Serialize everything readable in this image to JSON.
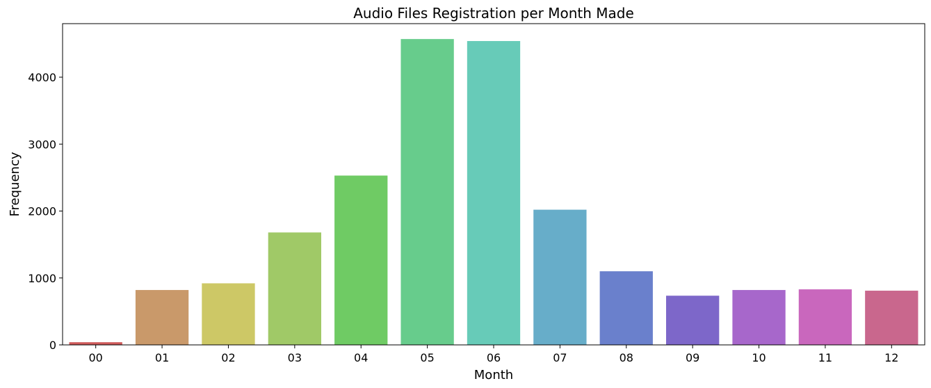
{
  "chart_data": {
    "type": "bar",
    "title": "Audio Files Registration per Month Made",
    "xlabel": "Month",
    "ylabel": "Frequency",
    "categories": [
      "00",
      "01",
      "02",
      "03",
      "04",
      "05",
      "06",
      "07",
      "08",
      "09",
      "10",
      "11",
      "12"
    ],
    "values": [
      40,
      820,
      920,
      1680,
      2530,
      4570,
      4540,
      2020,
      1100,
      735,
      820,
      830,
      810
    ],
    "colors": [
      "#cf5b5b",
      "#c9996a",
      "#cdc866",
      "#a0c967",
      "#6fcb64",
      "#67cc8c",
      "#67cbb8",
      "#67adc9",
      "#6a80cc",
      "#7d67c9",
      "#a767cb",
      "#c967bd",
      "#c9678d"
    ],
    "ylim": [
      0,
      4800
    ],
    "yticks": [
      0,
      1000,
      2000,
      3000,
      4000
    ],
    "grid": false,
    "legend": false
  }
}
